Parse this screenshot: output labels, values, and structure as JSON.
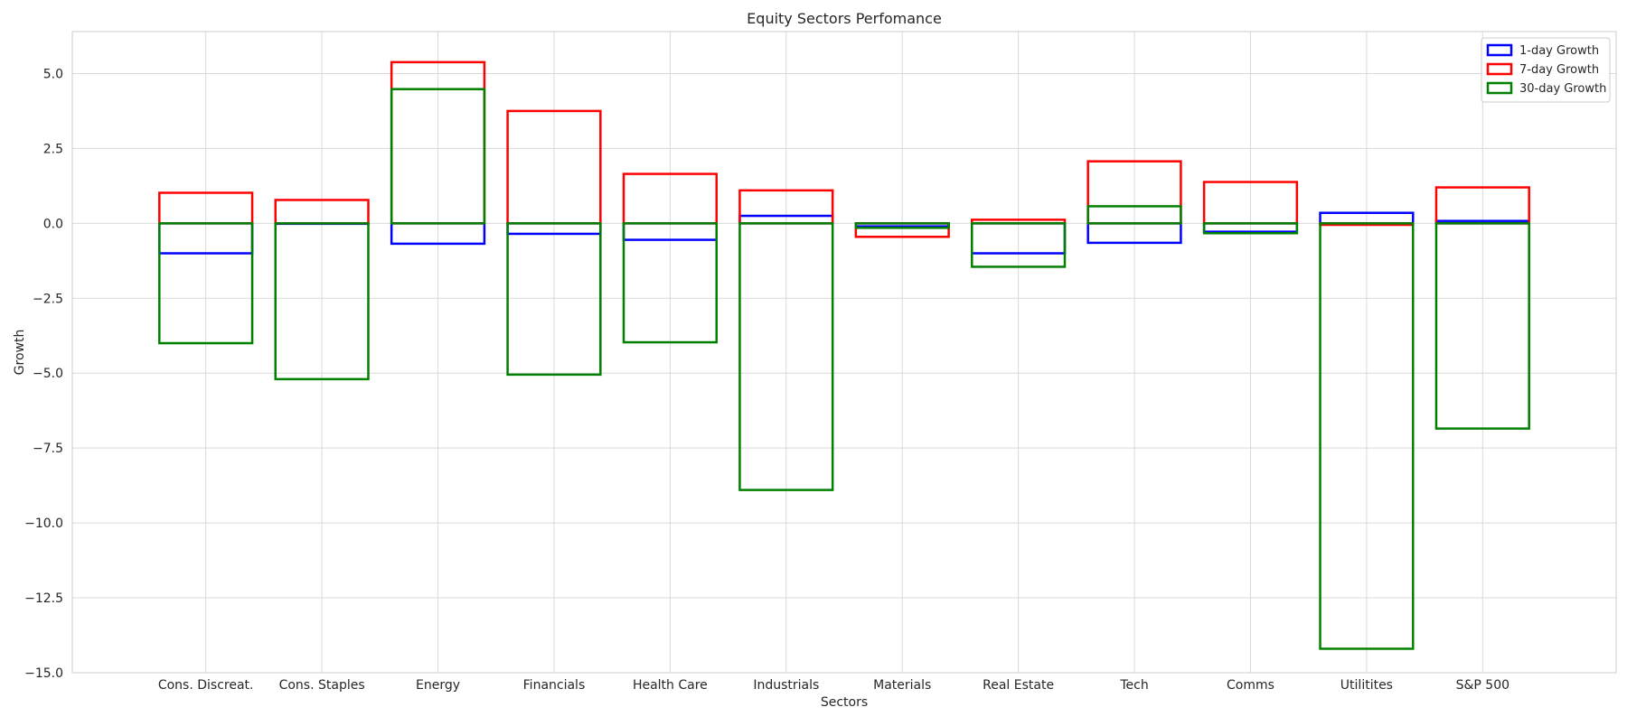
{
  "chart_data": {
    "type": "bar",
    "title": "Equity Sectors Perfomance",
    "xlabel": "Sectors",
    "ylabel": "Growth",
    "ylim": [
      -15.0,
      6.4
    ],
    "y_ticks": [
      "5.0",
      "2.5",
      "0.0",
      "−2.5",
      "−5.0",
      "−7.5",
      "−10.0",
      "−12.5",
      "−15.0"
    ],
    "y_tick_values": [
      5.0,
      2.5,
      0.0,
      -2.5,
      -5.0,
      -7.5,
      -10.0,
      -12.5,
      -15.0
    ],
    "grid": true,
    "legend_position": "top-right",
    "bar_style": "outline-only, overlaid",
    "categories": [
      "Cons. Discreat.",
      "Cons. Staples",
      "Energy",
      "Financials",
      "Health Care",
      "Industrials",
      "Materials",
      "Real Estate",
      "Tech",
      "Comms",
      "Utilitites",
      "S&P 500"
    ],
    "series": [
      {
        "name": "1-day Growth",
        "color": "#0000ff",
        "values": [
          -1.0,
          0.0,
          -0.68,
          -0.35,
          -0.55,
          0.25,
          -0.1,
          -1.0,
          -0.65,
          -0.28,
          0.35,
          0.08
        ]
      },
      {
        "name": "7-day Growth",
        "color": "#ff0000",
        "values": [
          1.02,
          0.78,
          5.38,
          3.75,
          1.65,
          1.1,
          -0.45,
          0.12,
          2.07,
          1.38,
          -0.05,
          1.2
        ]
      },
      {
        "name": "30-day Growth",
        "color": "#008000",
        "values": [
          -4.0,
          -5.2,
          4.48,
          -5.05,
          -3.97,
          -8.9,
          -0.15,
          -1.45,
          0.57,
          -0.33,
          -14.2,
          -6.85
        ]
      }
    ]
  }
}
